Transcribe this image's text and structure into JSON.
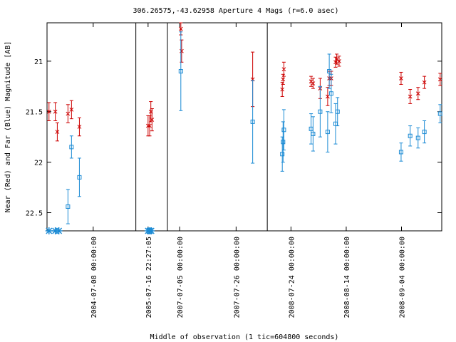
{
  "chart_data": {
    "type": "scatter",
    "title": "306.26575,-43.62958   Aperture 4 Mags (r=6.0 asec)",
    "xlabel": "Middle of observation (1 tic=604800 seconds)",
    "ylabel": "Near (Red) and Far (Blue) Magnitude [AB]",
    "y_inverted": true,
    "ylim": [
      22.68,
      20.62
    ],
    "yticks": [
      21,
      21.5,
      22,
      22.5
    ],
    "ytick_labels": [
      "21",
      "21.5",
      "22",
      "22.5"
    ],
    "xlim": [
      0,
      100
    ],
    "xticks": [
      {
        "x": 11.7,
        "label": "2004-07-08 00:00:00"
      },
      {
        "x": 25.6,
        "label": "2005-07-16 22:27:05"
      },
      {
        "x": 33.6,
        "label": "2007-07-05 00:00:00"
      },
      {
        "x": 47.9,
        "label": "2007-07-26 00:00:00"
      },
      {
        "x": 61.8,
        "label": "2008-07-24 00:00:00"
      },
      {
        "x": 75.8,
        "label": "2008-08-14 00:00:00"
      },
      {
        "x": 89.8,
        "label": "2008-09-04 00:00:00"
      }
    ],
    "segment_dividers": [
      22.5,
      30.5,
      55.8
    ],
    "grid": false,
    "series": [
      {
        "name": "Near",
        "color": "#cc0000",
        "marker": "x",
        "points": [
          {
            "x": 0.5,
            "y": 21.5,
            "err": 0.09
          },
          {
            "x": 2.1,
            "y": 21.5,
            "err": 0.09
          },
          {
            "x": 2.6,
            "y": 21.7,
            "err": 0.09
          },
          {
            "x": 5.3,
            "y": 21.52,
            "err": 0.09
          },
          {
            "x": 6.2,
            "y": 21.48,
            "err": 0.09
          },
          {
            "x": 8.2,
            "y": 21.65,
            "err": 0.09
          },
          {
            "x": 25.6,
            "y": 21.64,
            "err": 0.1
          },
          {
            "x": 26.0,
            "y": 21.64,
            "err": 0.1
          },
          {
            "x": 26.3,
            "y": 21.5,
            "err": 0.1
          },
          {
            "x": 26.6,
            "y": 21.58,
            "err": 0.11
          },
          {
            "x": 33.9,
            "y": 20.68,
            "err": 0.06
          },
          {
            "x": 34.1,
            "y": 20.9,
            "err": 0.11
          },
          {
            "x": 52.1,
            "y": 21.18,
            "err": 0.27
          },
          {
            "x": 59.6,
            "y": 21.28,
            "err": 0.07
          },
          {
            "x": 59.8,
            "y": 21.18,
            "err": 0.05
          },
          {
            "x": 60.0,
            "y": 21.08,
            "err": 0.07
          },
          {
            "x": 66.9,
            "y": 21.2,
            "err": 0.05
          },
          {
            "x": 67.4,
            "y": 21.22,
            "err": 0.05
          },
          {
            "x": 69.2,
            "y": 21.27,
            "err": 0.1
          },
          {
            "x": 71.1,
            "y": 21.35,
            "err": 0.09
          },
          {
            "x": 71.5,
            "y": 21.17,
            "err": 0.07
          },
          {
            "x": 72.0,
            "y": 21.17,
            "err": 0.07
          },
          {
            "x": 73.1,
            "y": 21.01,
            "err": 0.05
          },
          {
            "x": 73.4,
            "y": 20.98,
            "err": 0.05
          },
          {
            "x": 74.0,
            "y": 21.0,
            "err": 0.05
          },
          {
            "x": 89.7,
            "y": 21.17,
            "err": 0.06
          },
          {
            "x": 92.0,
            "y": 21.35,
            "err": 0.07
          },
          {
            "x": 94.0,
            "y": 21.32,
            "err": 0.06
          },
          {
            "x": 95.6,
            "y": 21.21,
            "err": 0.06
          },
          {
            "x": 99.6,
            "y": 21.18,
            "err": 0.06
          }
        ]
      },
      {
        "name": "Far",
        "color": "#1a8ad4",
        "marker": "square",
        "points": [
          {
            "x": 5.3,
            "y": 22.44,
            "err": 0.17
          },
          {
            "x": 6.2,
            "y": 21.85,
            "err": 0.11
          },
          {
            "x": 8.2,
            "y": 22.15,
            "err": 0.19
          },
          {
            "x": 33.9,
            "y": 21.1,
            "err": 0.39
          },
          {
            "x": 52.1,
            "y": 21.6,
            "err": 0.41
          },
          {
            "x": 59.6,
            "y": 21.92,
            "err": 0.17
          },
          {
            "x": 59.8,
            "y": 21.8,
            "err": 0.2
          },
          {
            "x": 60.0,
            "y": 21.68,
            "err": 0.2
          },
          {
            "x": 66.9,
            "y": 21.67,
            "err": 0.15
          },
          {
            "x": 67.4,
            "y": 21.72,
            "err": 0.17
          },
          {
            "x": 69.2,
            "y": 21.5,
            "err": 0.25
          },
          {
            "x": 71.1,
            "y": 21.7,
            "err": 0.2
          },
          {
            "x": 71.5,
            "y": 21.1,
            "err": 0.17
          },
          {
            "x": 72.0,
            "y": 21.32,
            "err": 0.19
          },
          {
            "x": 73.1,
            "y": 21.62,
            "err": 0.2
          },
          {
            "x": 73.6,
            "y": 21.5,
            "err": 0.14
          },
          {
            "x": 89.7,
            "y": 21.9,
            "err": 0.09
          },
          {
            "x": 92.0,
            "y": 21.74,
            "err": 0.1
          },
          {
            "x": 94.0,
            "y": 21.76,
            "err": 0.1
          },
          {
            "x": 95.6,
            "y": 21.7,
            "err": 0.11
          },
          {
            "x": 99.6,
            "y": 21.52,
            "err": 0.09
          }
        ]
      },
      {
        "name": "Far non-detection",
        "color": "#1a8ad4",
        "marker": "asterisk",
        "points": [
          {
            "x": 0.5,
            "y": 22.68
          },
          {
            "x": 2.1,
            "y": 22.68
          },
          {
            "x": 3.0,
            "y": 22.68
          },
          {
            "x": 25.6,
            "y": 22.68
          },
          {
            "x": 26.0,
            "y": 22.68
          },
          {
            "x": 26.4,
            "y": 22.68
          }
        ]
      }
    ]
  }
}
